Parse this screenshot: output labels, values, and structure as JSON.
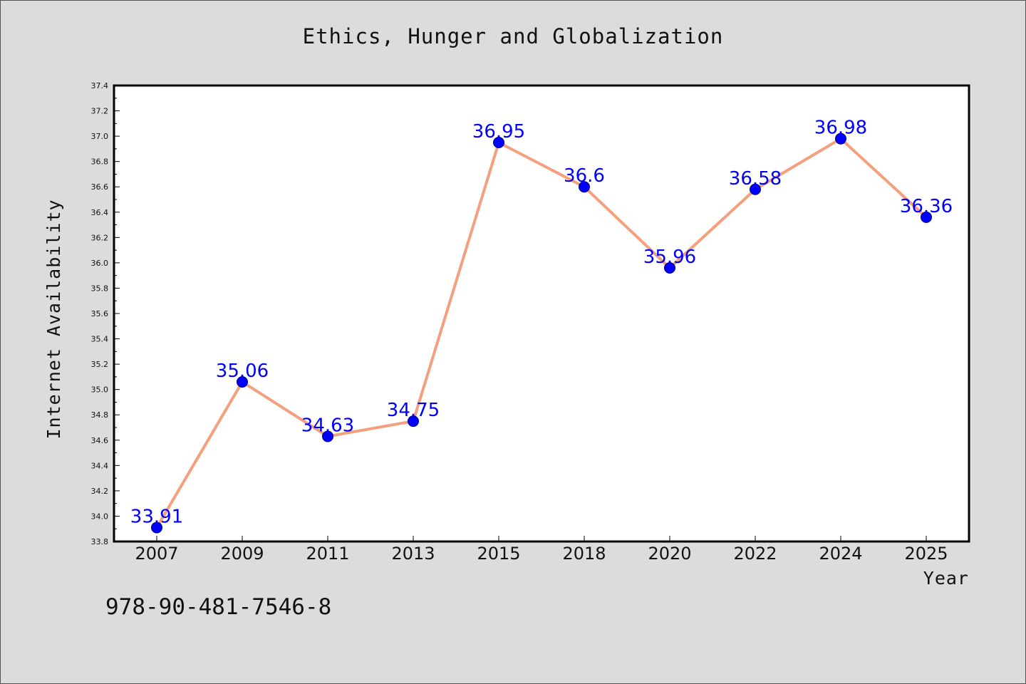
{
  "chart_data": {
    "type": "line",
    "title": "Ethics, Hunger and Globalization",
    "xlabel": "Year",
    "ylabel": "Internet Availability",
    "categories": [
      "2007",
      "2009",
      "2011",
      "2013",
      "2015",
      "2018",
      "2020",
      "2022",
      "2024",
      "2025"
    ],
    "values": [
      33.91,
      35.06,
      34.63,
      34.75,
      36.95,
      36.6,
      35.96,
      36.58,
      36.98,
      36.36
    ],
    "data_labels": [
      "33.91",
      "35.06",
      "34.63",
      "34.75",
      "36.95",
      "36.6",
      "35.96",
      "36.58",
      "36.98",
      "36.36"
    ],
    "ylim": [
      33.8,
      37.4
    ],
    "yticks": [
      "33.8",
      "34.0",
      "34.2",
      "34.4",
      "34.6",
      "34.8",
      "35.0",
      "35.2",
      "35.4",
      "35.6",
      "35.8",
      "36.0",
      "36.2",
      "36.4",
      "36.6",
      "36.8",
      "37.0",
      "37.2",
      "37.4"
    ],
    "grid": false,
    "line_color": "#f4a07e",
    "marker_color": "#0000ff",
    "label_color": "#0000ff"
  },
  "footer": {
    "isbn": "978-90-481-7546-8"
  }
}
